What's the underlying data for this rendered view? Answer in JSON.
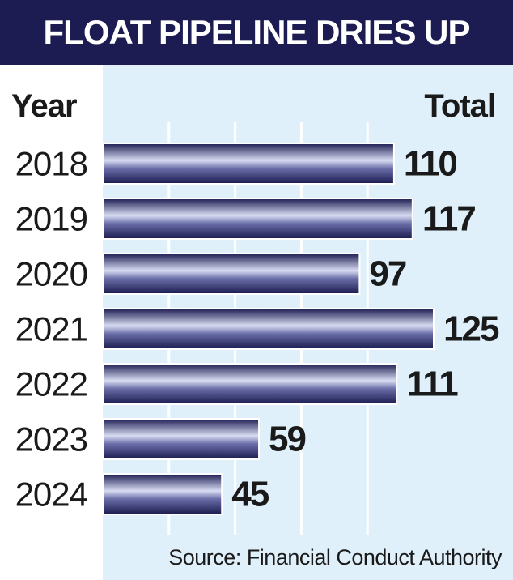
{
  "title": "FLOAT PIPELINE DRIES UP",
  "source": "Source: Financial Conduct Authority",
  "colors": {
    "title_band": "#1c1c52",
    "background": "#dff0fb",
    "label_panel": "#ffffff",
    "bar_dark": "#1c1c52",
    "bar_light": "#d8dcf2",
    "gridline": "#ffffff"
  },
  "chart_data": {
    "type": "bar",
    "orientation": "horizontal",
    "title": "FLOAT PIPELINE DRIES UP",
    "category_header": "Year",
    "value_header": "Total",
    "categories": [
      "2018",
      "2019",
      "2020",
      "2021",
      "2022",
      "2023",
      "2024"
    ],
    "values": [
      110,
      117,
      97,
      125,
      111,
      59,
      45
    ],
    "xlim": [
      0,
      125
    ],
    "grid": true,
    "data_labels": true,
    "source": "Source: Financial Conduct Authority"
  }
}
